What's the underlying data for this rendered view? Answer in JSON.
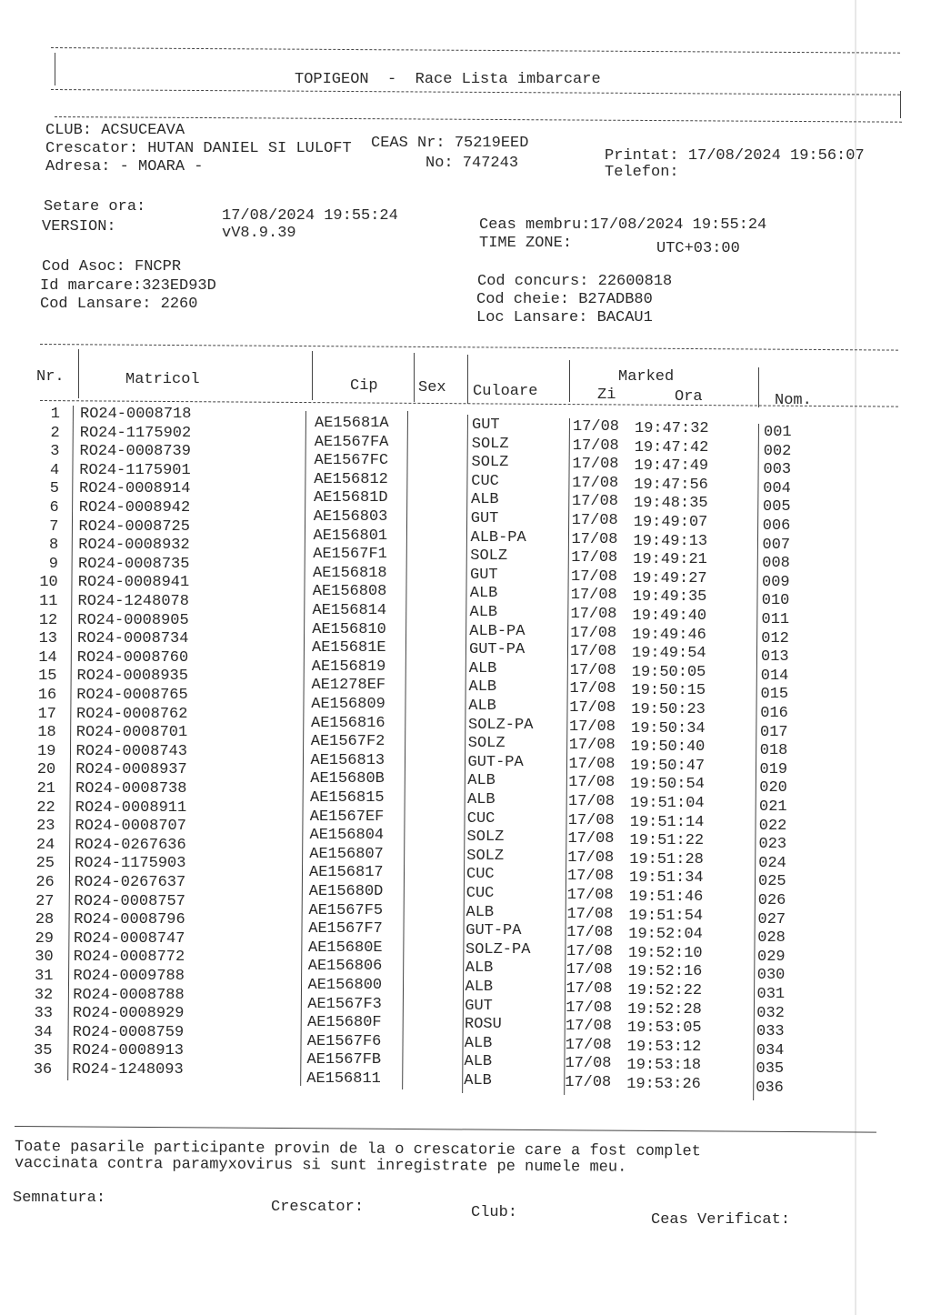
{
  "header": {
    "title": "TOPIGEON  -  Race Lista imbarcare"
  },
  "info": {
    "club": "CLUB: ACSUCEAVA",
    "crescator": "Crescator: HUTAN DANIEL SI LULOFT",
    "adresa": "Adresa: - MOARA -",
    "ceas_nr": "CEAS Nr: 75219EED",
    "no": "No: 747243",
    "printat": "Printat: 17/08/2024 19:56:07",
    "telefon": "Telefon:",
    "setare_label": "Setare ora:",
    "setare_value": "17/08/2024 19:55:24",
    "version_label": "VERSION:",
    "version_value": "vV8.9.39",
    "ceas_membru": "Ceas membru:17/08/2024 19:55:24",
    "time_zone_label": "TIME ZONE:",
    "time_zone_value": "UTC+03:00",
    "cod_asoc": "Cod Asoc: FNCPR",
    "id_marcare": "Id marcare:323ED93D",
    "cod_lansare": "Cod Lansare: 2260",
    "cod_concurs": "Cod concurs: 22600818",
    "cod_cheie": "Cod cheie: B27ADB80",
    "loc_lansare": "Loc Lansare: BACAU1"
  },
  "table": {
    "headers": {
      "nr": "Nr.",
      "matricol": "Matricol",
      "cip": "Cip",
      "sex": "Sex",
      "culoare": "Culoare",
      "marked": "Marked",
      "zi": "Zi",
      "ora": "Ora",
      "nom": "Nom."
    },
    "rows": [
      [
        "1",
        "RO24-0008718",
        "AE15681A",
        "",
        "GUT",
        "17/08",
        "19:47:32",
        "001"
      ],
      [
        "2",
        "RO24-1175902",
        "AE1567FA",
        "",
        "SOLZ",
        "17/08",
        "19:47:42",
        "002"
      ],
      [
        "3",
        "RO24-0008739",
        "AE1567FC",
        "",
        "SOLZ",
        "17/08",
        "19:47:49",
        "003"
      ],
      [
        "4",
        "RO24-1175901",
        "AE156812",
        "",
        "CUC",
        "17/08",
        "19:47:56",
        "004"
      ],
      [
        "5",
        "RO24-0008914",
        "AE15681D",
        "",
        "ALB",
        "17/08",
        "19:48:35",
        "005"
      ],
      [
        "6",
        "RO24-0008942",
        "AE156803",
        "",
        "GUT",
        "17/08",
        "19:49:07",
        "006"
      ],
      [
        "7",
        "RO24-0008725",
        "AE156801",
        "",
        "ALB-PA",
        "17/08",
        "19:49:13",
        "007"
      ],
      [
        "8",
        "RO24-0008932",
        "AE1567F1",
        "",
        "SOLZ",
        "17/08",
        "19:49:21",
        "008"
      ],
      [
        "9",
        "RO24-0008735",
        "AE156818",
        "",
        "GUT",
        "17/08",
        "19:49:27",
        "009"
      ],
      [
        "10",
        "RO24-0008941",
        "AE156808",
        "",
        "ALB",
        "17/08",
        "19:49:35",
        "010"
      ],
      [
        "11",
        "RO24-1248078",
        "AE156814",
        "",
        "ALB",
        "17/08",
        "19:49:40",
        "011"
      ],
      [
        "12",
        "RO24-0008905",
        "AE156810",
        "",
        "ALB-PA",
        "17/08",
        "19:49:46",
        "012"
      ],
      [
        "13",
        "RO24-0008734",
        "AE15681E",
        "",
        "GUT-PA",
        "17/08",
        "19:49:54",
        "013"
      ],
      [
        "14",
        "RO24-0008760",
        "AE156819",
        "",
        "ALB",
        "17/08",
        "19:50:05",
        "014"
      ],
      [
        "15",
        "RO24-0008935",
        "AE1278EF",
        "",
        "ALB",
        "17/08",
        "19:50:15",
        "015"
      ],
      [
        "16",
        "RO24-0008765",
        "AE156809",
        "",
        "ALB",
        "17/08",
        "19:50:23",
        "016"
      ],
      [
        "17",
        "RO24-0008762",
        "AE156816",
        "",
        "SOLZ-PA",
        "17/08",
        "19:50:34",
        "017"
      ],
      [
        "18",
        "RO24-0008701",
        "AE1567F2",
        "",
        "SOLZ",
        "17/08",
        "19:50:40",
        "018"
      ],
      [
        "19",
        "RO24-0008743",
        "AE156813",
        "",
        "GUT-PA",
        "17/08",
        "19:50:47",
        "019"
      ],
      [
        "20",
        "RO24-0008937",
        "AE15680B",
        "",
        "ALB",
        "17/08",
        "19:50:54",
        "020"
      ],
      [
        "21",
        "RO24-0008738",
        "AE156815",
        "",
        "ALB",
        "17/08",
        "19:51:04",
        "021"
      ],
      [
        "22",
        "RO24-0008911",
        "AE1567EF",
        "",
        "CUC",
        "17/08",
        "19:51:14",
        "022"
      ],
      [
        "23",
        "RO24-0008707",
        "AE156804",
        "",
        "SOLZ",
        "17/08",
        "19:51:22",
        "023"
      ],
      [
        "24",
        "RO24-0267636",
        "AE156807",
        "",
        "SOLZ",
        "17/08",
        "19:51:28",
        "024"
      ],
      [
        "25",
        "RO24-1175903",
        "AE156817",
        "",
        "CUC",
        "17/08",
        "19:51:34",
        "025"
      ],
      [
        "26",
        "RO24-0267637",
        "AE15680D",
        "",
        "CUC",
        "17/08",
        "19:51:46",
        "026"
      ],
      [
        "27",
        "RO24-0008757",
        "AE1567F5",
        "",
        "ALB",
        "17/08",
        "19:51:54",
        "027"
      ],
      [
        "28",
        "RO24-0008796",
        "AE1567F7",
        "",
        "GUT-PA",
        "17/08",
        "19:52:04",
        "028"
      ],
      [
        "29",
        "RO24-0008747",
        "AE15680E",
        "",
        "SOLZ-PA",
        "17/08",
        "19:52:10",
        "029"
      ],
      [
        "30",
        "RO24-0008772",
        "AE156806",
        "",
        "ALB",
        "17/08",
        "19:52:16",
        "030"
      ],
      [
        "31",
        "RO24-0009788",
        "AE156800",
        "",
        "ALB",
        "17/08",
        "19:52:22",
        "031"
      ],
      [
        "32",
        "RO24-0008788",
        "AE1567F3",
        "",
        "GUT",
        "17/08",
        "19:52:28",
        "032"
      ],
      [
        "33",
        "RO24-0008929",
        "AE15680F",
        "",
        "ROSU",
        "17/08",
        "19:53:05",
        "033"
      ],
      [
        "34",
        "RO24-0008759",
        "AE1567F6",
        "",
        "ALB",
        "17/08",
        "19:53:12",
        "034"
      ],
      [
        "35",
        "RO24-0008913",
        "AE1567FB",
        "",
        "ALB",
        "17/08",
        "19:53:18",
        "035"
      ],
      [
        "36",
        "RO24-1248093",
        "AE156811",
        "",
        "ALB",
        "17/08",
        "19:53:26",
        "036"
      ]
    ]
  },
  "footer": {
    "declaration_line1": "Toate pasarile participante provin de la o crescatorie care a fost complet",
    "declaration_line2": "vaccinata contra paramyxovirus si sunt inregistrate pe numele meu.",
    "semnatura": "Semnatura:",
    "crescator": "Crescator:",
    "club": "Club:",
    "ceas_verificat": "Ceas Verificat:"
  }
}
